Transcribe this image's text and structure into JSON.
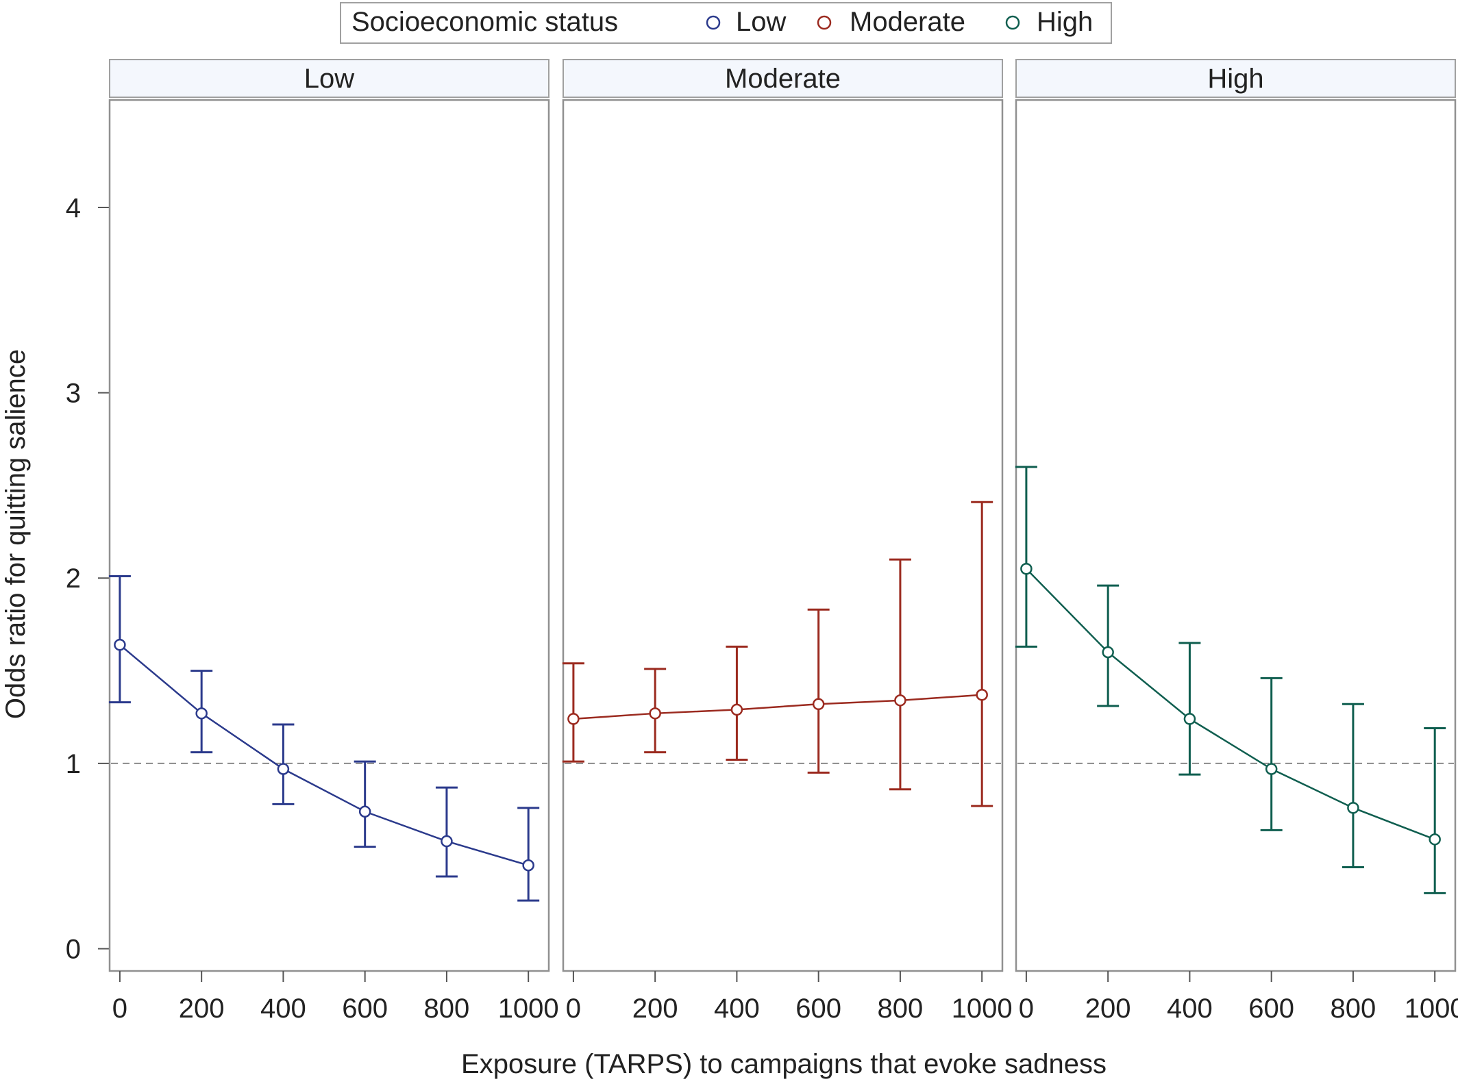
{
  "chart_data": {
    "type": "line",
    "subtype": "panel line plot with error bars",
    "legend": {
      "title": "Socioeconomic status",
      "placement": "top-center",
      "entries": [
        {
          "name": "Low",
          "color": "#2b3a8c"
        },
        {
          "name": "Moderate",
          "color": "#9b2a1f"
        },
        {
          "name": "High",
          "color": "#0f5e4f"
        }
      ]
    },
    "xlabel": "Exposure (TARPS) to campaigns that evoke sadness",
    "ylabel": "Odds ratio for quitting salience",
    "xlim": [
      -25,
      1050
    ],
    "ylim": [
      -0.12,
      4.58
    ],
    "xticks": [
      0,
      200,
      400,
      600,
      800,
      1000
    ],
    "yticks": [
      0,
      1,
      2,
      3,
      4
    ],
    "reference_line": {
      "y": 1,
      "style": "dashed"
    },
    "grid": false,
    "panels": [
      {
        "label": "Low",
        "color": "#2b3a8c",
        "x": [
          0,
          200,
          400,
          600,
          800,
          1000
        ],
        "y": [
          1.64,
          1.27,
          0.97,
          0.74,
          0.58,
          0.45
        ],
        "lower": [
          1.33,
          1.06,
          0.78,
          0.55,
          0.39,
          0.26
        ],
        "upper": [
          2.01,
          1.5,
          1.21,
          1.01,
          0.87,
          0.76
        ]
      },
      {
        "label": "Moderate",
        "color": "#9b2a1f",
        "x": [
          0,
          200,
          400,
          600,
          800,
          1000
        ],
        "y": [
          1.24,
          1.27,
          1.29,
          1.32,
          1.34,
          1.37
        ],
        "lower": [
          1.01,
          1.06,
          1.02,
          0.95,
          0.86,
          0.77
        ],
        "upper": [
          1.54,
          1.51,
          1.63,
          1.83,
          2.1,
          2.41
        ]
      },
      {
        "label": "High",
        "color": "#0f5e4f",
        "x": [
          0,
          200,
          400,
          600,
          800,
          1000
        ],
        "y": [
          2.05,
          1.6,
          1.24,
          0.97,
          0.76,
          0.59
        ],
        "lower": [
          1.63,
          1.31,
          0.94,
          0.64,
          0.44,
          0.3
        ],
        "upper": [
          2.6,
          1.96,
          1.65,
          1.46,
          1.32,
          1.19
        ]
      }
    ]
  }
}
